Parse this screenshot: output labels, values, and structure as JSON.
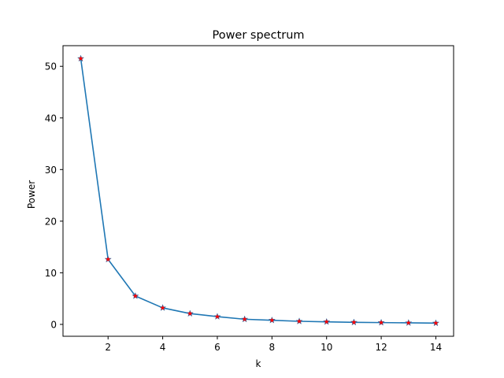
{
  "chart_data": {
    "type": "line",
    "title": "Power spectrum",
    "xlabel": "k",
    "ylabel": "Power",
    "xlim": [
      0.35,
      14.65
    ],
    "ylim": [
      -2.3,
      54.0
    ],
    "xticks": [
      2,
      4,
      6,
      8,
      10,
      12,
      14
    ],
    "yticks": [
      0,
      10,
      20,
      30,
      40,
      50
    ],
    "grid": false,
    "legend": "none",
    "line_color": "#1f77b4",
    "marker_color": "#ff0000",
    "marker": "star",
    "series": [
      {
        "x": [
          1,
          2,
          3,
          4,
          5,
          6,
          7,
          8,
          9,
          10,
          11,
          12,
          13,
          14
        ],
        "y": [
          51.5,
          12.6,
          5.5,
          3.2,
          2.1,
          1.5,
          1.0,
          0.8,
          0.6,
          0.5,
          0.4,
          0.35,
          0.3,
          0.25
        ]
      }
    ]
  }
}
